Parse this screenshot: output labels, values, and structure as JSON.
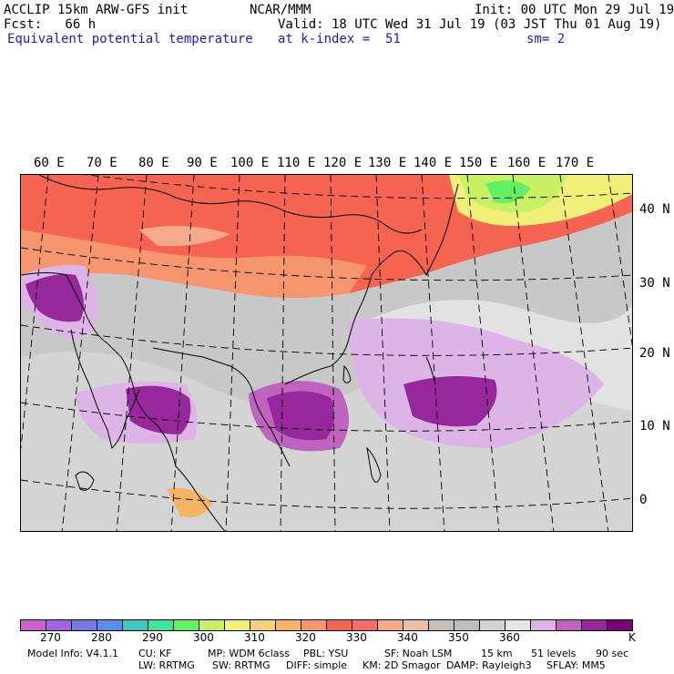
{
  "header": {
    "line1_left": "ACCLIP 15km ARW-GFS init",
    "line1_center": "NCAR/MMM",
    "line1_right": "Init: 00 UTC Mon 29 Jul 19",
    "fcst": "Fcst:   66 h",
    "valid": "Valid: 18 UTC Wed 31 Jul 19 (03 JST Thu 01 Aug 19)",
    "field": "Equivalent potential temperature",
    "level": "at k-index =  51",
    "smooth": "sm= 2"
  },
  "longitude_labels": [
    "60 E",
    "70 E",
    "80 E",
    "90 E",
    "100 E",
    "110 E",
    "120 E",
    "130 E",
    "140 E",
    "150 E",
    "160 E",
    "170 E"
  ],
  "latitude_labels": [
    "40 N",
    "30 N",
    "20 N",
    "10 N",
    "0"
  ],
  "colorbar": {
    "colors": [
      "#cf5fcf",
      "#a064dc",
      "#7878e6",
      "#5a8cf0",
      "#3cc8be",
      "#3ce696",
      "#64f064",
      "#c8f064",
      "#f0f078",
      "#f5d278",
      "#f5b464",
      "#f5966e",
      "#f56450",
      "#f56e64",
      "#f5aa8c",
      "#ebbea5",
      "#c8beb4",
      "#bebebe",
      "#d2d2d2",
      "#e6e6e6",
      "#dcb4e6",
      "#be64be",
      "#96289b",
      "#780078"
    ],
    "tick_labels": [
      "270",
      "280",
      "290",
      "300",
      "310",
      "320",
      "330",
      "340",
      "350",
      "360"
    ],
    "unit": "K"
  },
  "footer": {
    "model_info": "Model Info: V4.1.1",
    "cu": "CU: KF",
    "mp": "MP: WDM 6class",
    "pbl": "PBL: YSU",
    "sf": "SF: Noah LSM",
    "res": "15 km",
    "levels": "51 levels",
    "dt": "90 sec",
    "lw": "LW: RRTMG",
    "sw": "SW: RRTMG",
    "diff": "DIFF: simple",
    "km": "KM: 2D Smagor",
    "damp": "DAMP: Rayleigh3",
    "sflay": "SFLAY: MM5"
  }
}
